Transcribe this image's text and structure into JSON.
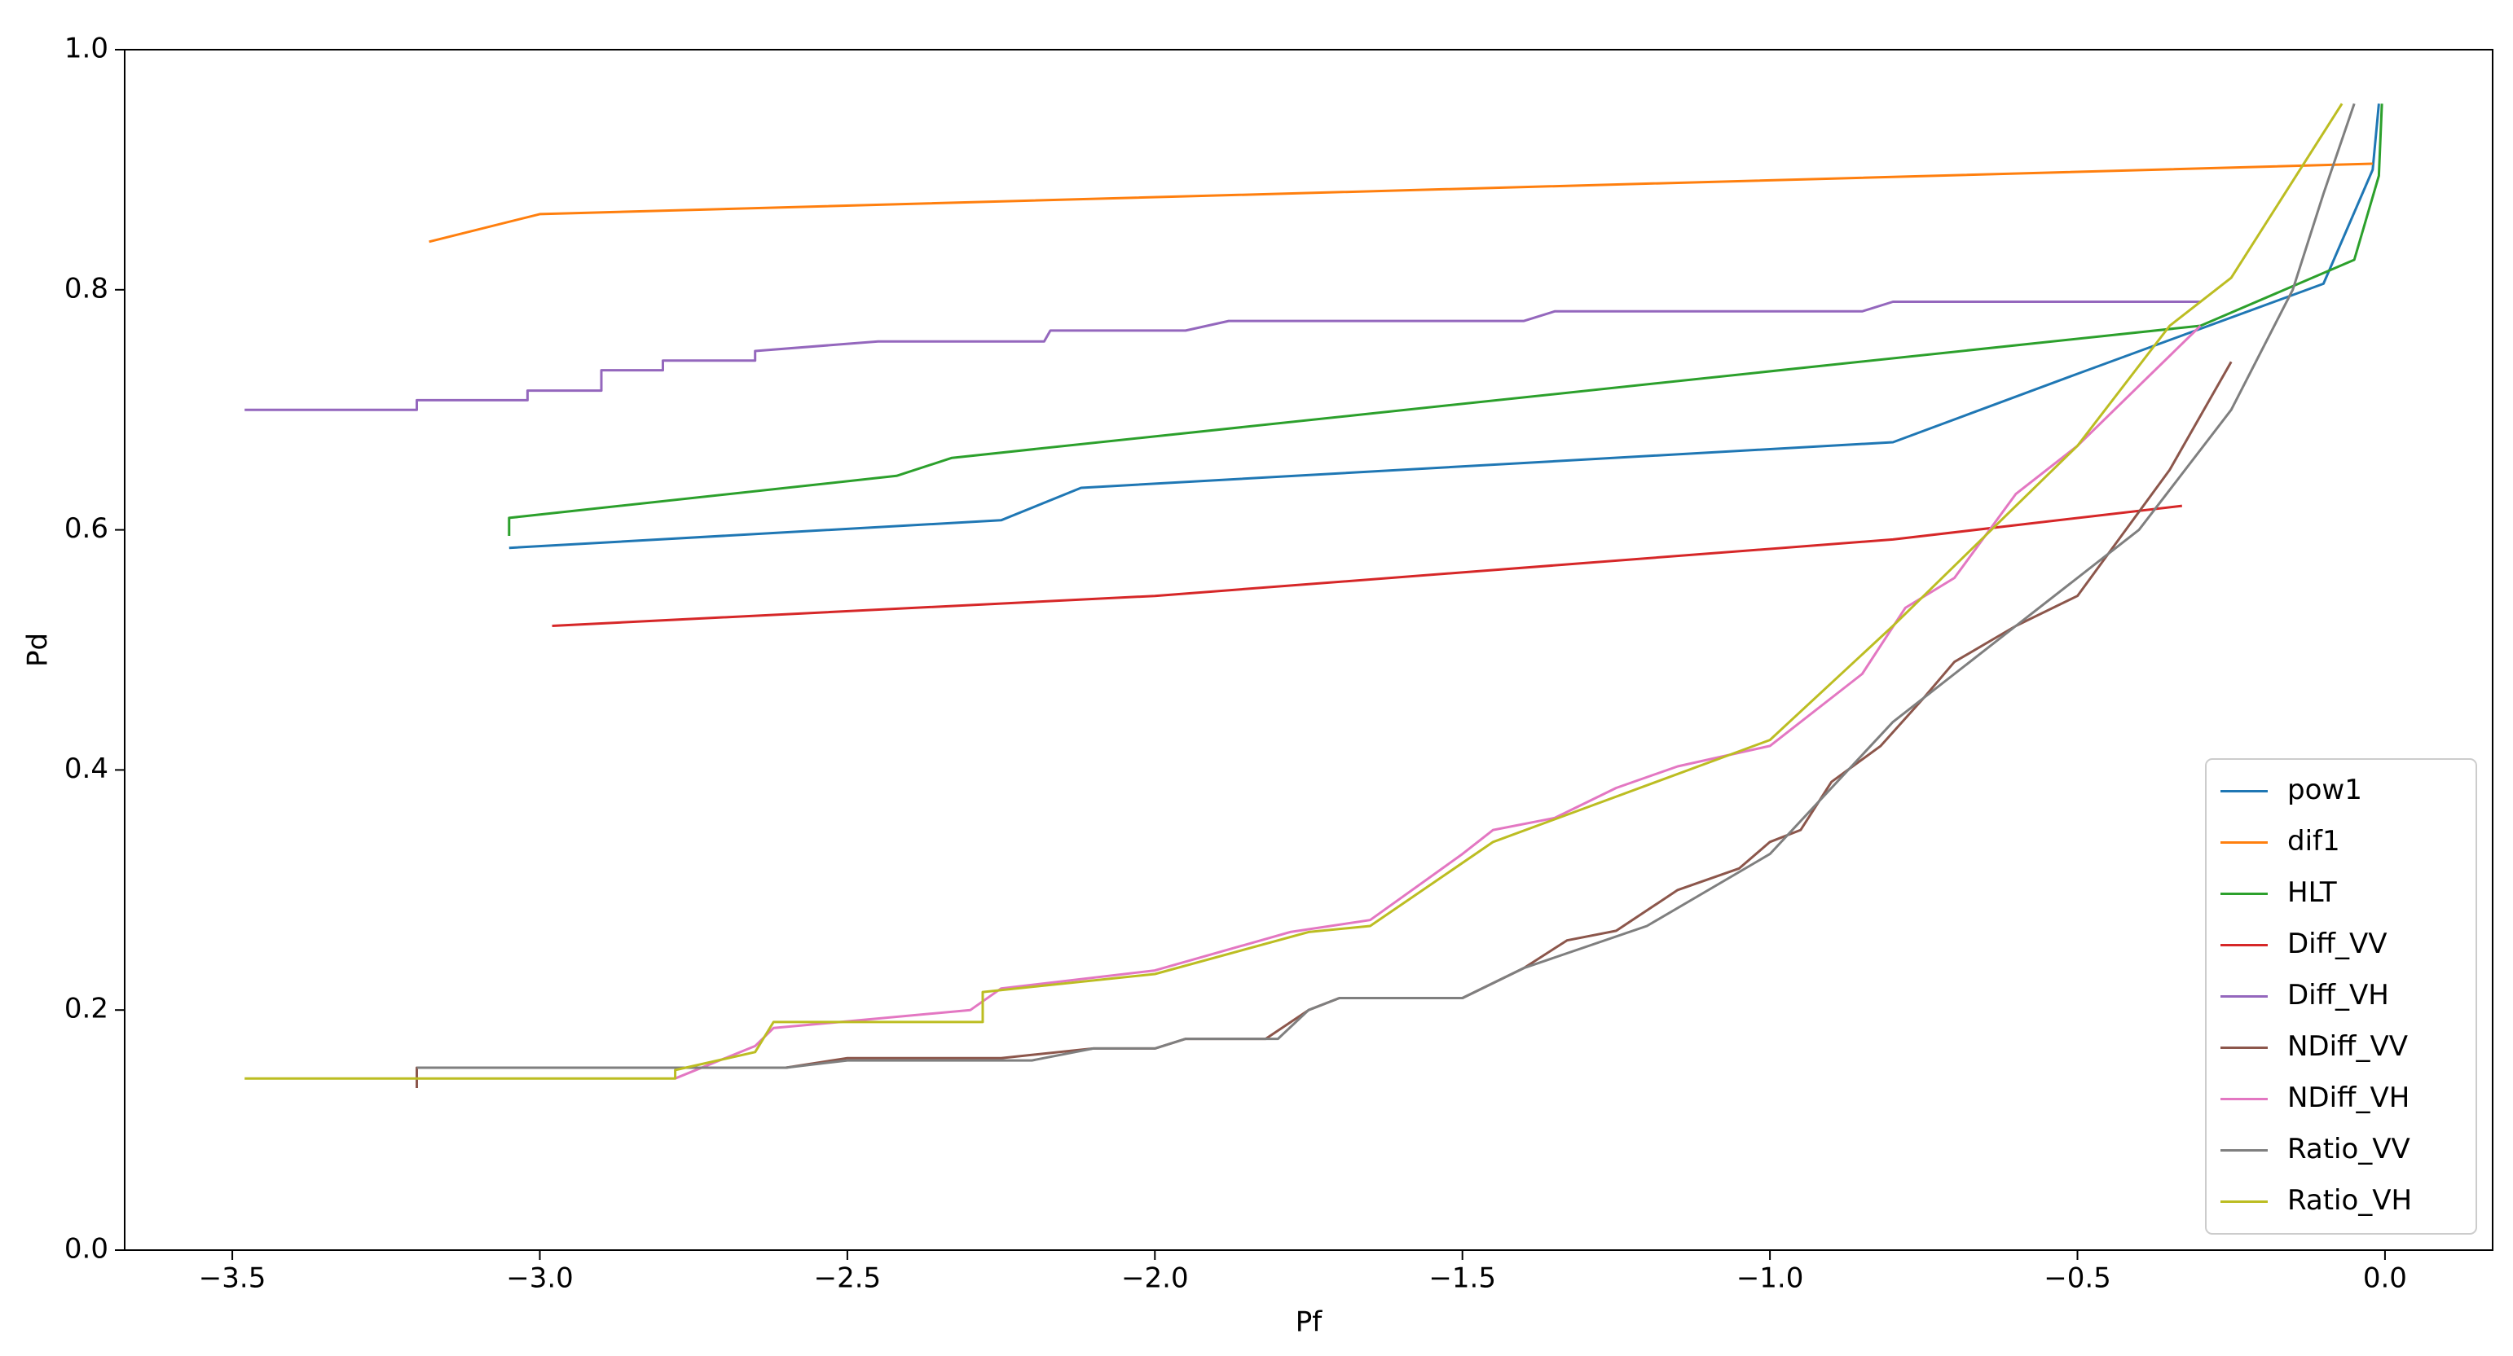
{
  "chart_data": {
    "type": "line",
    "xlabel": "Pf",
    "ylabel": "Pd",
    "xlim": [
      -3.675,
      0.175
    ],
    "ylim": [
      0,
      1
    ],
    "xticks": [
      {
        "value": -3.5,
        "label": "−3.5"
      },
      {
        "value": -3.0,
        "label": "−3.0"
      },
      {
        "value": -2.5,
        "label": "−2.5"
      },
      {
        "value": -2.0,
        "label": "−2.0"
      },
      {
        "value": -1.5,
        "label": "−1.5"
      },
      {
        "value": -1.0,
        "label": "−1.0"
      },
      {
        "value": -0.5,
        "label": "−0.5"
      },
      {
        "value": 0,
        "label": "0.0"
      }
    ],
    "yticks": [
      {
        "value": 0,
        "label": "0.0"
      },
      0.2,
      0.4,
      0.6,
      0.8,
      {
        "value": 1,
        "label": "1.0"
      }
    ],
    "grid": false,
    "legend": "lower right",
    "series": [
      {
        "name": "pow1",
        "color": "#1f77b4",
        "x": [
          -3.05,
          -2.25,
          -2.12,
          -0.8,
          -0.5,
          -0.1,
          -0.02,
          -0.01
        ],
        "values": [
          0.585,
          0.608,
          0.635,
          0.673,
          0.73,
          0.805,
          0.9,
          0.955
        ]
      },
      {
        "name": "dif1",
        "color": "#ff7f0e",
        "x": [
          -3.18,
          -3.0,
          -0.02
        ],
        "values": [
          0.84,
          0.863,
          0.905
        ]
      },
      {
        "name": "HLT",
        "color": "#2ca02c",
        "x": [
          -3.05,
          -3.05,
          -2.42,
          -2.33,
          -0.3,
          -0.05,
          -0.01,
          -0.005
        ],
        "values": [
          0.595,
          0.61,
          0.645,
          0.66,
          0.77,
          0.825,
          0.895,
          0.955
        ]
      },
      {
        "name": "Diff_VV",
        "color": "#d62728",
        "x": [
          -2.98,
          -2.0,
          -0.8,
          -0.33
        ],
        "values": [
          0.52,
          0.545,
          0.592,
          0.62
        ]
      },
      {
        "name": "Diff_VH",
        "color": "#9467bd",
        "x": [
          -3.48,
          -3.2,
          -3.2,
          -3.02,
          -3.02,
          -2.9,
          -2.9,
          -2.8,
          -2.8,
          -2.65,
          -2.65,
          -2.45,
          -2.18,
          -2.17,
          -1.95,
          -1.88,
          -1.4,
          -1.35,
          -0.85,
          -0.8,
          -0.3
        ],
        "values": [
          0.7,
          0.7,
          0.708,
          0.708,
          0.716,
          0.716,
          0.733,
          0.733,
          0.741,
          0.741,
          0.749,
          0.757,
          0.757,
          0.766,
          0.766,
          0.774,
          0.774,
          0.782,
          0.782,
          0.79,
          0.79
        ]
      },
      {
        "name": "NDiff_VV",
        "color": "#8c564b",
        "x": [
          -3.2,
          -3.2,
          -2.6,
          -2.5,
          -2.25,
          -2.1,
          -2.0,
          -1.95,
          -1.82,
          -1.75,
          -1.7,
          -1.5,
          -1.4,
          -1.33,
          -1.25,
          -1.15,
          -1.05,
          -1.0,
          -0.95,
          -0.9,
          -0.82,
          -0.75,
          -0.7,
          -0.6,
          -0.5,
          -0.45,
          -0.35,
          -0.25
        ],
        "values": [
          0.135,
          0.152,
          0.152,
          0.16,
          0.16,
          0.168,
          0.168,
          0.176,
          0.176,
          0.2,
          0.21,
          0.21,
          0.235,
          0.258,
          0.266,
          0.3,
          0.318,
          0.34,
          0.35,
          0.39,
          0.42,
          0.46,
          0.49,
          0.52,
          0.545,
          0.58,
          0.65,
          0.74
        ]
      },
      {
        "name": "NDiff_VH",
        "color": "#e377c2",
        "x": [
          -2.78,
          -2.65,
          -2.62,
          -2.3,
          -2.25,
          -2.0,
          -1.78,
          -1.65,
          -1.5,
          -1.45,
          -1.35,
          -1.25,
          -1.15,
          -1.0,
          -0.85,
          -0.78,
          -0.7,
          -0.6,
          -0.5,
          -0.4,
          -0.3
        ],
        "values": [
          0.143,
          0.17,
          0.185,
          0.2,
          0.218,
          0.233,
          0.265,
          0.275,
          0.33,
          0.35,
          0.36,
          0.385,
          0.403,
          0.42,
          0.48,
          0.535,
          0.56,
          0.63,
          0.67,
          0.72,
          0.77
        ]
      },
      {
        "name": "Ratio_VV",
        "color": "#7f7f7f",
        "x": [
          -3.2,
          -2.6,
          -2.5,
          -2.2,
          -2.1,
          -2.0,
          -1.95,
          -1.8,
          -1.75,
          -1.7,
          -1.5,
          -1.4,
          -1.2,
          -1.0,
          -0.8,
          -0.6,
          -0.4,
          -0.25,
          -0.15,
          -0.1,
          -0.05
        ],
        "values": [
          0.152,
          0.152,
          0.158,
          0.158,
          0.168,
          0.168,
          0.176,
          0.176,
          0.2,
          0.21,
          0.21,
          0.235,
          0.27,
          0.33,
          0.44,
          0.52,
          0.6,
          0.7,
          0.8,
          0.88,
          0.955
        ]
      },
      {
        "name": "Ratio_VH",
        "color": "#bcbd22",
        "x": [
          -3.48,
          -2.78,
          -2.78,
          -2.65,
          -2.62,
          -2.28,
          -2.28,
          -2.0,
          -1.75,
          -1.65,
          -1.45,
          -1.0,
          -0.8,
          -0.6,
          -0.5,
          -0.35,
          -0.25,
          -0.07
        ],
        "values": [
          0.143,
          0.143,
          0.15,
          0.165,
          0.19,
          0.19,
          0.215,
          0.23,
          0.265,
          0.27,
          0.34,
          0.425,
          0.52,
          0.62,
          0.67,
          0.77,
          0.81,
          0.955
        ]
      }
    ]
  }
}
